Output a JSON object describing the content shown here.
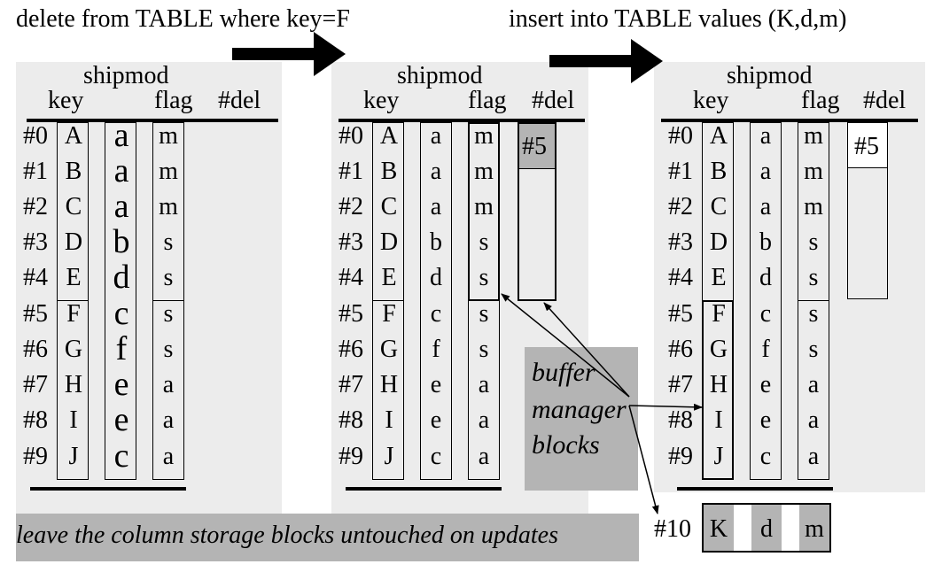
{
  "stages": [
    {
      "caption": "delete from TABLE where key=F"
    },
    {
      "caption": "insert into TABLE values (K,d,m)"
    }
  ],
  "table": {
    "title": "shipmod",
    "columns": [
      "key",
      "",
      "flag",
      "#del"
    ],
    "row_labels": [
      "#0",
      "#1",
      "#2",
      "#3",
      "#4",
      "#5",
      "#6",
      "#7",
      "#8",
      "#9"
    ],
    "keys": [
      "A",
      "B",
      "C",
      "D",
      "E",
      "F",
      "G",
      "H",
      "I",
      "J"
    ],
    "col2": [
      "a",
      "a",
      "a",
      "b",
      "d",
      "c",
      "f",
      "e",
      "e",
      "c"
    ],
    "flags": [
      "m",
      "m",
      "m",
      "s",
      "s",
      "s",
      "s",
      "a",
      "a",
      "a"
    ]
  },
  "deleted_entry": "#5",
  "new_row": {
    "label": "#10",
    "values": [
      "K",
      "d",
      "m"
    ]
  },
  "buffer_label": [
    "buffer",
    "manager",
    "blocks"
  ],
  "footer_caption": "leave the column storage blocks untouched on updates",
  "colors": {
    "panel": "#ececec",
    "highlight": "#b4b4b4",
    "ink": "#000000"
  }
}
